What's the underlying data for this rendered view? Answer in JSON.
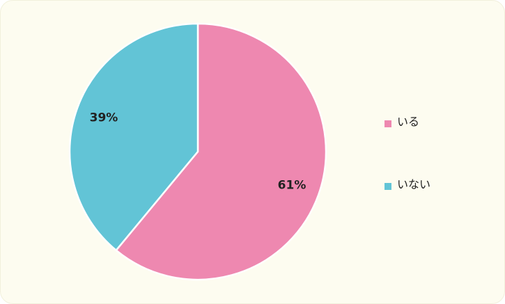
{
  "chart_data": {
    "type": "pie",
    "categories": [
      "いる",
      "いない"
    ],
    "values": [
      61,
      39
    ],
    "value_labels": [
      "61%",
      "39%"
    ],
    "colors": [
      "#ee88b0",
      "#62c4d6"
    ]
  }
}
